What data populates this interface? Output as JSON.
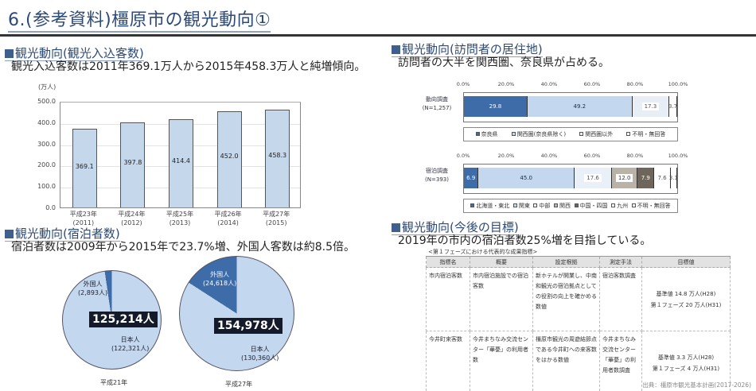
{
  "page": {
    "title": "6.(参考資料)橿原市の観光動向①"
  },
  "sections": {
    "visitors": {
      "heading": "観光動向(観光入込客数)",
      "description": "観光入込客数は2011年369.1万人から2015年458.3万人と純増傾向。"
    },
    "overnight": {
      "heading": "観光動向(宿泊者数)",
      "description": "宿泊者数は2009年から2015年で23.7%増、外国人客数は約8.5倍。"
    },
    "residence": {
      "heading": "観光動向(訪問者の居住地)",
      "description": "訪問者の大半を関西圏、奈良県が占める。"
    },
    "goals": {
      "heading": "観光動向(今後の目標)",
      "description": "2019年の市内の宿泊者数25%増を目指している。"
    }
  },
  "chart_data": [
    {
      "type": "bar",
      "title": "観光入込客数",
      "ylabel": "(万人)",
      "ylim": [
        0,
        500
      ],
      "yticks": [
        "500.0",
        "400.0",
        "300.0",
        "200.0",
        "100.0",
        "0.0"
      ],
      "categories": [
        {
          "line1": "平成23年",
          "line2": "(2011)"
        },
        {
          "line1": "平成24年",
          "line2": "(2012)"
        },
        {
          "line1": "平成25年",
          "line2": "(2013)"
        },
        {
          "line1": "平成26年",
          "line2": "(2014)"
        },
        {
          "line1": "平成27年",
          "line2": "(2015)"
        }
      ],
      "values": [
        369.1,
        397.8,
        414.4,
        452.0,
        458.3
      ],
      "value_labels": [
        "369.1",
        "397.8",
        "414.4",
        "452.0",
        "458.3"
      ],
      "grid": true
    },
    {
      "type": "pie",
      "title": "平成21年",
      "total_label": "125,214人",
      "slices": [
        {
          "name": "外国人",
          "value": 2893,
          "label": "(2,893人)",
          "color": "#3d6ca8"
        },
        {
          "name": "日本人",
          "value": 122321,
          "label": "(122,321人)",
          "color": "#c3d8ee"
        }
      ]
    },
    {
      "type": "pie",
      "title": "平成27年",
      "total_label": "154,978人",
      "slices": [
        {
          "name": "外国人",
          "value": 24618,
          "label": "(24,618人)",
          "color": "#3d6ca8"
        },
        {
          "name": "日本人",
          "value": 130360,
          "label": "(130,360人)",
          "color": "#c3d8ee"
        }
      ]
    },
    {
      "type": "bar",
      "orientation": "horizontal-stacked",
      "title": "動向調査",
      "category": "動向調査",
      "sample": "(N=1,257)",
      "xticks": [
        "0.0%",
        "20.0%",
        "40.0%",
        "60.0%",
        "80.0%",
        "100.0%"
      ],
      "series": [
        {
          "name": "奈良県",
          "value": 29.8,
          "label": "29.8",
          "color": "#3d6ca8",
          "text": "#ffffff"
        },
        {
          "name": "関西圏(奈良県除く)",
          "value": 49.2,
          "label": "49.2",
          "color": "#c3d8ee",
          "text": "#1a2a44"
        },
        {
          "name": "関西圏以外",
          "value": 17.3,
          "label": "17.3",
          "color": "#e8eef6",
          "text": "#555555",
          "boxed": true
        },
        {
          "name": "不明・無回答",
          "value": 3.7,
          "label": "3.7",
          "color": "#ffffff",
          "text": "#555555"
        }
      ]
    },
    {
      "type": "bar",
      "orientation": "horizontal-stacked",
      "title": "宿泊調査",
      "category": "宿泊調査",
      "sample": "(N=393)",
      "xticks": [
        "0.0%",
        "20.0%",
        "40.0%",
        "60.0%",
        "80.0%",
        "100.0%"
      ],
      "series": [
        {
          "name": "北海道・東北",
          "value": 6.9,
          "label": "6.9",
          "color": "#3d6ca8",
          "text": "#ffffff"
        },
        {
          "name": "関東",
          "value": 45.0,
          "label": "45.0",
          "color": "#c3d8ee",
          "text": "#1a2a44"
        },
        {
          "name": "中部",
          "value": 17.6,
          "label": "17.6",
          "color": "#eaf0f7",
          "text": "#555555",
          "boxed": true
        },
        {
          "name": "関西",
          "value": 12.0,
          "label": "12.0",
          "color": "#b9b2a6",
          "text": "#333333",
          "boxed": true
        },
        {
          "name": "中国・四国",
          "value": 7.9,
          "label": "7.9",
          "color": "#6e665a",
          "text": "#ffffff"
        },
        {
          "name": "九州",
          "value": 7.6,
          "label": "7.6",
          "color": "#ffffff",
          "text": "#555555"
        },
        {
          "name": "不明・無回答",
          "value": 3.1,
          "label": "3.1",
          "color": "#ffffff",
          "text": "#555555"
        }
      ]
    }
  ],
  "kpi_table": {
    "caption": "<第１フェーズにおける代表的な成果指標>",
    "headers": [
      "指標名",
      "概要",
      "設定根拠",
      "測定手法",
      "目標値"
    ],
    "rows": [
      {
        "name": "市内宿泊客数",
        "summary": "市内宿泊施設での宿泊客数",
        "basis": "新ホテルが開業し、中南和観光の宿泊拠点としての役割の向上を確かめる数値",
        "method": "宿泊客数調査",
        "target_base": "基準値 14.8 万人(H28)",
        "target_phase1": "第１フェーズ 20 万人(H31)"
      },
      {
        "name": "今井町来客数",
        "summary": "今井まちなみ交流センター「華甍」の利用者数",
        "basis": "橿原市観光の周遊結節点である今井町への来客数をはかる数値",
        "method": "今井まちなみ交流センター「華甍」の利用者数調査",
        "target_base": "基準値 3.3 万人(H28)",
        "target_phase1": "第１フェーズ 4 万人(H31)"
      }
    ]
  },
  "source": "出典：橿原市観光基本計画(2017-2026)",
  "colors": {
    "heading": "#2c4a78",
    "bar_fill": "#c5d7ea",
    "pie_dark": "#3d6ca8",
    "pie_light": "#c3d8ee"
  }
}
